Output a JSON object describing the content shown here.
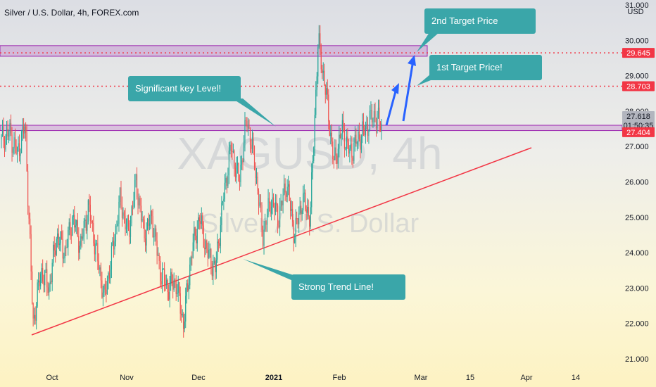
{
  "header": {
    "title": "Silver / U.S. Dollar, 4h, FOREX.com"
  },
  "watermark": {
    "symbol": "XAGUSD, 4h",
    "name": "Silver / U.S. Dollar"
  },
  "chart_data": {
    "type": "candlestick",
    "currency_label": "USD",
    "ylim": [
      21.0,
      31.0
    ],
    "y_ticks": [
      "21.000",
      "22.000",
      "23.000",
      "24.000",
      "25.000",
      "26.000",
      "27.000",
      "28.000",
      "29.000",
      "30.000",
      "31.000"
    ],
    "x_ticks": [
      "Oct",
      "Nov",
      "Dec",
      "2021",
      "Feb",
      "Mar",
      "15",
      "Apr",
      "14"
    ],
    "price_labels": [
      {
        "value": "29.645",
        "color": "#f23645"
      },
      {
        "value": "28.703",
        "color": "#f23645"
      },
      {
        "value": "27.618",
        "color": "#b2b5be"
      },
      {
        "value": "01:50:35",
        "color": "#b2b5be"
      },
      {
        "value": "27.404",
        "color": "#f23645"
      }
    ],
    "levels": [
      {
        "price": 29.645,
        "style": "dotted",
        "color": "#f23645"
      },
      {
        "price": 28.703,
        "style": "dotted",
        "color": "#f23645"
      }
    ],
    "zones": [
      {
        "from": 29.55,
        "to": 29.85,
        "color": "#9c27b0"
      },
      {
        "from": 27.45,
        "to": 27.6,
        "color": "#9c27b0"
      }
    ],
    "price_path": [
      27.2,
      27.4,
      26.8,
      27.6,
      22.0,
      23.5,
      23.0,
      24.5,
      24.0,
      25.0,
      24.2,
      25.3,
      24.0,
      22.7,
      24.0,
      25.5,
      24.5,
      26.0,
      24.5,
      25.0,
      23.5,
      23.0,
      23.2,
      22.0,
      24.0,
      25.0,
      24.0,
      23.5,
      25.5,
      27.0,
      26.0,
      27.8,
      26.5,
      24.5,
      25.5,
      25.0,
      26.0,
      24.5,
      25.5,
      25.0,
      30.0,
      28.5,
      26.5,
      27.5,
      26.8,
      27.2,
      27.5,
      27.9,
      27.6
    ]
  },
  "annotations": {
    "key_level": "Significant key Level!",
    "trend_line": "Strong Trend Line!",
    "first_target": "1st Target Price!",
    "second_target": "2nd Target Price"
  }
}
